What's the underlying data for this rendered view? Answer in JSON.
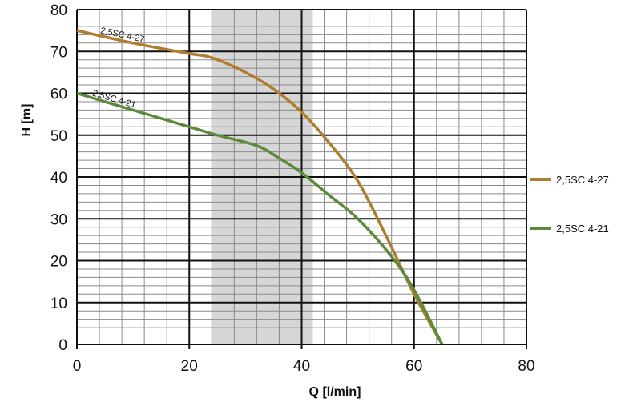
{
  "chart_data": {
    "type": "line",
    "title": "",
    "xlabel": "Q [l/min]",
    "ylabel": "H [m]",
    "xlim": [
      0,
      80
    ],
    "ylim": [
      0,
      80
    ],
    "xticks": [
      0,
      20,
      40,
      60,
      80
    ],
    "yticks": [
      0,
      10,
      20,
      30,
      40,
      50,
      60,
      70,
      80
    ],
    "grid": true,
    "shaded_range_x": [
      24,
      42
    ],
    "legend_position": "right",
    "series": [
      {
        "name": "2,5SC 4-27",
        "color": "#b07d2e",
        "x": [
          0,
          10,
          20,
          24,
          30,
          35,
          40,
          45,
          50,
          55,
          60,
          65
        ],
        "y": [
          75,
          72,
          69.5,
          68.5,
          65,
          61,
          55.5,
          48,
          39,
          26,
          12,
          0
        ]
      },
      {
        "name": "2,5SC 4-21",
        "color": "#5b8a3a",
        "x": [
          0,
          10,
          20,
          25,
          32,
          36,
          40,
          45,
          50,
          56,
          60,
          65
        ],
        "y": [
          60,
          56,
          52,
          50,
          47.5,
          44.5,
          41,
          35.5,
          30,
          21,
          13,
          0
        ]
      }
    ]
  }
}
